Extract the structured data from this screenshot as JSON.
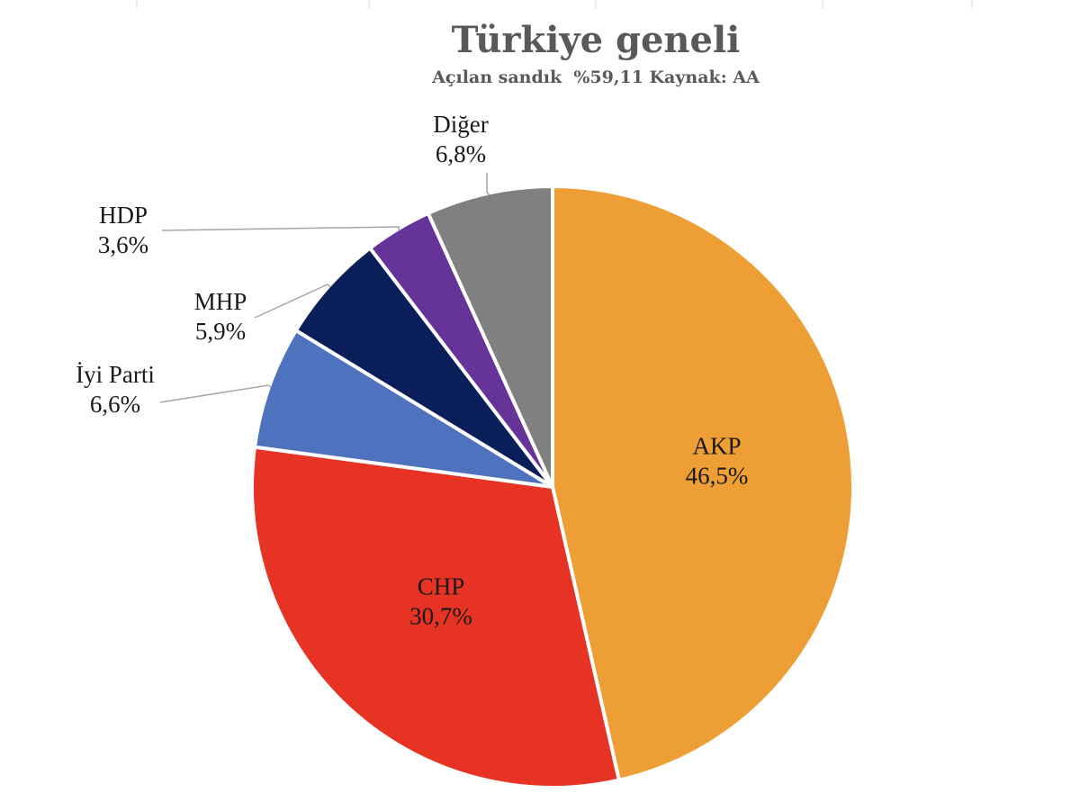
{
  "chart_data": {
    "type": "pie",
    "title": "Türkiye geneli",
    "subtitle": "Açılan sandık  %59,11 Kaynak: AA",
    "slices": [
      {
        "name": "AKP",
        "value": 46.5,
        "value_label": "46,5%",
        "color": "#ED9F36"
      },
      {
        "name": "CHP",
        "value": 30.7,
        "value_label": "30,7%",
        "color": "#E63323"
      },
      {
        "name": "İyi Parti",
        "value": 6.6,
        "value_label": "6,6%",
        "color": "#4F72BE"
      },
      {
        "name": "MHP",
        "value": 5.9,
        "value_label": "5,9%",
        "color": "#0A1E5A"
      },
      {
        "name": "HDP",
        "value": 3.6,
        "value_label": "3,6%",
        "color": "#663399"
      },
      {
        "name": "Diğer",
        "value": 6.8,
        "value_label": "6,8%",
        "color": "#808080"
      }
    ],
    "start": "12 o'clock",
    "direction": "clockwise",
    "labels": {
      "inside": [
        "AKP",
        "CHP"
      ],
      "outside": [
        "İyi Parti",
        "MHP",
        "HDP",
        "Diğer"
      ]
    }
  }
}
